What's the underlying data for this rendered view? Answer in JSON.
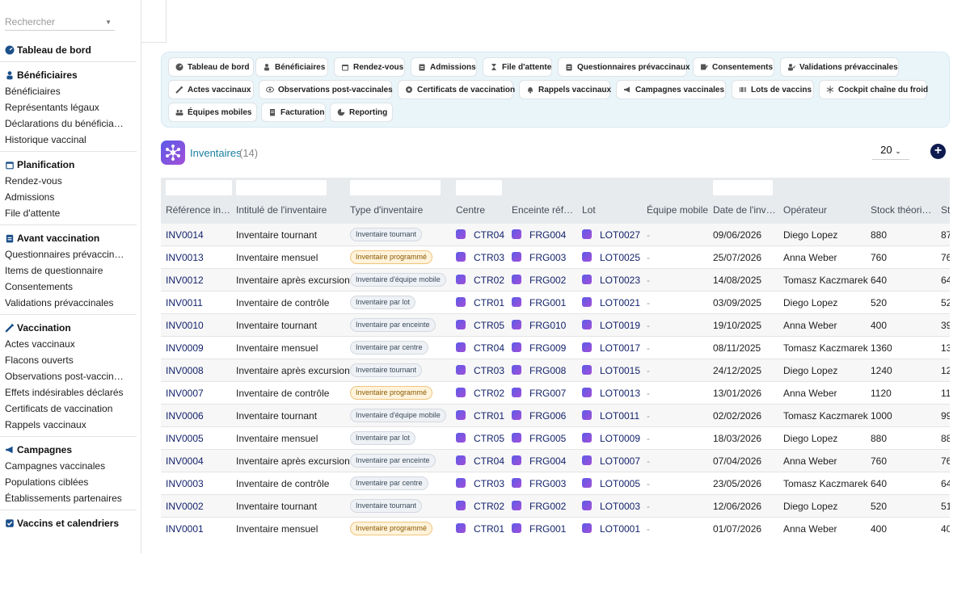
{
  "search": {
    "placeholder": "Rechercher"
  },
  "sidebar": {
    "dashboard": "Tableau de bord",
    "sections": [
      {
        "title": "Bénéficiaires",
        "icon": "people-icon",
        "items": [
          "Bénéficiaires",
          "Représentants légaux",
          "Déclarations du bénéficia…",
          "Historique vaccinal"
        ]
      },
      {
        "title": "Planification",
        "icon": "calendar-icon",
        "items": [
          "Rendez-vous",
          "Admissions",
          "File d'attente"
        ]
      },
      {
        "title": "Avant vaccination",
        "icon": "clipboard-icon",
        "items": [
          "Questionnaires prévaccin…",
          "Items de questionnaire",
          "Consentements",
          "Validations prévaccinales"
        ]
      },
      {
        "title": "Vaccination",
        "icon": "syringe-icon",
        "items": [
          "Actes vaccinaux",
          "Flacons ouverts",
          "Observations post-vaccin…",
          "Effets indésirables déclarés",
          "Certificats de vaccination",
          "Rappels vaccinaux"
        ]
      },
      {
        "title": "Campagnes",
        "icon": "megaphone-icon",
        "items": [
          "Campagnes vaccinales",
          "Populations ciblées",
          "Établissements partenaires"
        ]
      },
      {
        "title": "Vaccins et calendriers",
        "icon": "checklist-icon",
        "items": []
      }
    ]
  },
  "quick_links": [
    {
      "label": "Tableau de bord",
      "icon": "dashboard-icon"
    },
    {
      "label": "Bénéficiaires",
      "icon": "people-icon"
    },
    {
      "label": "Rendez-vous",
      "icon": "calendar-icon"
    },
    {
      "label": "Admissions",
      "icon": "clipboard-icon"
    },
    {
      "label": "File d'attente",
      "icon": "hourglass-icon"
    },
    {
      "label": "Questionnaires prévaccinaux",
      "icon": "clipboard-icon"
    },
    {
      "label": "Consentements",
      "icon": "signature-icon"
    },
    {
      "label": "Validations prévaccinales",
      "icon": "user-check-icon"
    },
    {
      "label": "Actes vaccinaux",
      "icon": "syringe-icon"
    },
    {
      "label": "Observations post-vaccinales",
      "icon": "eye-icon"
    },
    {
      "label": "Certificats de vaccination",
      "icon": "certificate-icon"
    },
    {
      "label": "Rappels vaccinaux",
      "icon": "bell-icon"
    },
    {
      "label": "Campagnes vaccinales",
      "icon": "megaphone-icon"
    },
    {
      "label": "Lots de vaccins",
      "icon": "barcode-icon"
    },
    {
      "label": "Cockpit chaîne du froid",
      "icon": "snowflake-icon"
    },
    {
      "label": "Équipes mobiles",
      "icon": "team-icon"
    },
    {
      "label": "Facturation",
      "icon": "invoice-icon"
    },
    {
      "label": "Reporting",
      "icon": "chart-pie-icon"
    }
  ],
  "page": {
    "title": "Inventaires",
    "count": "(14)",
    "page_size": "20",
    "add_label": "+"
  },
  "table": {
    "columns": [
      "Référence in…",
      "Intitulé de l'inventaire",
      "Type d'inventaire",
      "Centre",
      "Enceinte réfr…",
      "Lot",
      "Équipe mobile",
      "Date de l'inv…",
      "Opérateur",
      "Stock théori…",
      "St"
    ],
    "rows": [
      {
        "ref": "INV0014",
        "title": "Inventaire tournant",
        "type": "Inventaire tournant",
        "prog": false,
        "centre": "CTR04",
        "enceinte": "FRG004",
        "lot": "LOT0027",
        "equipe": "-",
        "date": "09/06/2026",
        "op": "Diego Lopez",
        "stock": "880",
        "st": "87"
      },
      {
        "ref": "INV0013",
        "title": "Inventaire mensuel",
        "type": "Inventaire programmé",
        "prog": true,
        "centre": "CTR03",
        "enceinte": "FRG003",
        "lot": "LOT0025",
        "equipe": "-",
        "date": "25/07/2026",
        "op": "Anna Weber",
        "stock": "760",
        "st": "76"
      },
      {
        "ref": "INV0012",
        "title": "Inventaire après excursion",
        "type": "Inventaire d'équipe mobile",
        "prog": false,
        "centre": "CTR02",
        "enceinte": "FRG002",
        "lot": "LOT0023",
        "equipe": "-",
        "date": "14/08/2025",
        "op": "Tomasz Kaczmarek",
        "stock": "640",
        "st": "64"
      },
      {
        "ref": "INV0011",
        "title": "Inventaire de contrôle",
        "type": "Inventaire par lot",
        "prog": false,
        "centre": "CTR01",
        "enceinte": "FRG001",
        "lot": "LOT0021",
        "equipe": "-",
        "date": "03/09/2025",
        "op": "Diego Lopez",
        "stock": "520",
        "st": "52"
      },
      {
        "ref": "INV0010",
        "title": "Inventaire tournant",
        "type": "Inventaire par enceinte",
        "prog": false,
        "centre": "CTR05",
        "enceinte": "FRG010",
        "lot": "LOT0019",
        "equipe": "-",
        "date": "19/10/2025",
        "op": "Anna Weber",
        "stock": "400",
        "st": "39"
      },
      {
        "ref": "INV0009",
        "title": "Inventaire mensuel",
        "type": "Inventaire par centre",
        "prog": false,
        "centre": "CTR04",
        "enceinte": "FRG009",
        "lot": "LOT0017",
        "equipe": "-",
        "date": "08/11/2025",
        "op": "Tomasz Kaczmarek",
        "stock": "1360",
        "st": "13"
      },
      {
        "ref": "INV0008",
        "title": "Inventaire après excursion",
        "type": "Inventaire tournant",
        "prog": false,
        "centre": "CTR03",
        "enceinte": "FRG008",
        "lot": "LOT0015",
        "equipe": "-",
        "date": "24/12/2025",
        "op": "Diego Lopez",
        "stock": "1240",
        "st": "12"
      },
      {
        "ref": "INV0007",
        "title": "Inventaire de contrôle",
        "type": "Inventaire programmé",
        "prog": true,
        "centre": "CTR02",
        "enceinte": "FRG007",
        "lot": "LOT0013",
        "equipe": "-",
        "date": "13/01/2026",
        "op": "Anna Weber",
        "stock": "1120",
        "st": "11"
      },
      {
        "ref": "INV0006",
        "title": "Inventaire tournant",
        "type": "Inventaire d'équipe mobile",
        "prog": false,
        "centre": "CTR01",
        "enceinte": "FRG006",
        "lot": "LOT0011",
        "equipe": "-",
        "date": "02/02/2026",
        "op": "Tomasz Kaczmarek",
        "stock": "1000",
        "st": "99"
      },
      {
        "ref": "INV0005",
        "title": "Inventaire mensuel",
        "type": "Inventaire par lot",
        "prog": false,
        "centre": "CTR05",
        "enceinte": "FRG005",
        "lot": "LOT0009",
        "equipe": "-",
        "date": "18/03/2026",
        "op": "Diego Lopez",
        "stock": "880",
        "st": "88"
      },
      {
        "ref": "INV0004",
        "title": "Inventaire après excursion",
        "type": "Inventaire par enceinte",
        "prog": false,
        "centre": "CTR04",
        "enceinte": "FRG004",
        "lot": "LOT0007",
        "equipe": "-",
        "date": "07/04/2026",
        "op": "Anna Weber",
        "stock": "760",
        "st": "76"
      },
      {
        "ref": "INV0003",
        "title": "Inventaire de contrôle",
        "type": "Inventaire par centre",
        "prog": false,
        "centre": "CTR03",
        "enceinte": "FRG003",
        "lot": "LOT0005",
        "equipe": "-",
        "date": "23/05/2026",
        "op": "Tomasz Kaczmarek",
        "stock": "640",
        "st": "64"
      },
      {
        "ref": "INV0002",
        "title": "Inventaire tournant",
        "type": "Inventaire tournant",
        "prog": false,
        "centre": "CTR02",
        "enceinte": "FRG002",
        "lot": "LOT0003",
        "equipe": "-",
        "date": "12/06/2026",
        "op": "Diego Lopez",
        "stock": "520",
        "st": "51"
      },
      {
        "ref": "INV0001",
        "title": "Inventaire mensuel",
        "type": "Inventaire programmé",
        "prog": true,
        "centre": "CTR01",
        "enceinte": "FRG001",
        "lot": "LOT0001",
        "equipe": "-",
        "date": "01/07/2026",
        "op": "Anna Weber",
        "stock": "400",
        "st": "40"
      }
    ]
  },
  "colors": {
    "accent": "#1a7fa0",
    "brand_dark": "#0f1b4f",
    "link": "#14236b",
    "panel": "#eaf5fa"
  }
}
